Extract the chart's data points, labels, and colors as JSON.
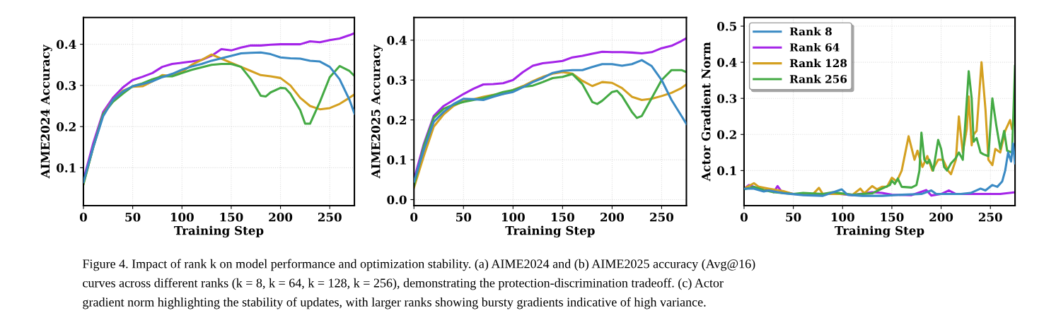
{
  "chart_data": [
    {
      "type": "line",
      "xlabel": "Training Step",
      "ylabel": "AIME2024 Accuracy",
      "xlim": [
        0,
        275
      ],
      "xticks": [
        0,
        50,
        100,
        150,
        200,
        250
      ],
      "ylim": [
        0.008,
        0.465
      ],
      "yticks": [
        0.1,
        0.2,
        0.3,
        0.4
      ],
      "grid": true,
      "legend": false,
      "annotations": [
        "Figure 4. Impact of rank k on model performance and optimization stability. (a) AIME2024 and (b) AIME2025 accuracy (Avg@16)",
        "curves across different ranks (k = 8, k = 64, k = 128, k = 256), demonstrating the protection-discrimination tradeoff. (c) Actor",
        "gradient norm highlighting the stability of updates, with larger ranks showing bursty gradients indicative of high variance."
      ],
      "series": [
        {
          "color": "#3a8ac4",
          "x": [
            0,
            10,
            20,
            30,
            40,
            50,
            60,
            70,
            80,
            90,
            100,
            110,
            120,
            130,
            140,
            150,
            160,
            170,
            180,
            190,
            200,
            210,
            220,
            230,
            240,
            250,
            260,
            270,
            275
          ],
          "values": [
            0.065,
            0.15,
            0.225,
            0.265,
            0.285,
            0.298,
            0.303,
            0.31,
            0.32,
            0.328,
            0.338,
            0.346,
            0.352,
            0.36,
            0.366,
            0.372,
            0.378,
            0.379,
            0.38,
            0.376,
            0.368,
            0.366,
            0.365,
            0.36,
            0.358,
            0.345,
            0.315,
            0.265,
            0.232
          ]
        },
        {
          "color": "#a424e8",
          "x": [
            0,
            10,
            20,
            30,
            40,
            50,
            60,
            70,
            80,
            90,
            100,
            110,
            120,
            130,
            140,
            150,
            160,
            170,
            180,
            190,
            200,
            210,
            220,
            230,
            240,
            250,
            260,
            270,
            275
          ],
          "values": [
            0.07,
            0.16,
            0.235,
            0.27,
            0.295,
            0.313,
            0.321,
            0.33,
            0.345,
            0.352,
            0.355,
            0.358,
            0.362,
            0.372,
            0.388,
            0.385,
            0.392,
            0.397,
            0.397,
            0.399,
            0.4,
            0.4,
            0.4,
            0.407,
            0.405,
            0.41,
            0.414,
            0.422,
            0.427
          ]
        },
        {
          "color": "#d4a020",
          "x": [
            0,
            10,
            20,
            30,
            40,
            50,
            60,
            70,
            80,
            90,
            100,
            110,
            120,
            130,
            140,
            150,
            160,
            170,
            180,
            190,
            200,
            210,
            220,
            230,
            240,
            250,
            260,
            270,
            275
          ],
          "values": [
            0.06,
            0.15,
            0.23,
            0.265,
            0.287,
            0.297,
            0.298,
            0.31,
            0.325,
            0.323,
            0.333,
            0.35,
            0.362,
            0.375,
            0.365,
            0.355,
            0.345,
            0.335,
            0.325,
            0.322,
            0.318,
            0.3,
            0.27,
            0.25,
            0.242,
            0.245,
            0.255,
            0.27,
            0.278
          ]
        },
        {
          "color": "#44aa44",
          "x": [
            0,
            10,
            20,
            30,
            40,
            50,
            60,
            70,
            80,
            90,
            100,
            110,
            120,
            130,
            140,
            150,
            160,
            170,
            180,
            185,
            190,
            200,
            205,
            210,
            220,
            225,
            230,
            240,
            250,
            260,
            270,
            275
          ],
          "values": [
            0.06,
            0.15,
            0.23,
            0.26,
            0.28,
            0.298,
            0.305,
            0.315,
            0.322,
            0.322,
            0.33,
            0.338,
            0.344,
            0.35,
            0.352,
            0.352,
            0.345,
            0.315,
            0.275,
            0.273,
            0.283,
            0.294,
            0.293,
            0.28,
            0.24,
            0.207,
            0.207,
            0.26,
            0.32,
            0.347,
            0.335,
            0.323
          ]
        }
      ]
    },
    {
      "type": "line",
      "xlabel": "Training Step",
      "ylabel": "AIME2025 Accuracy",
      "xlim": [
        0,
        275
      ],
      "xticks": [
        0,
        50,
        100,
        150,
        200,
        250
      ],
      "ylim": [
        -0.015,
        0.457
      ],
      "yticks": [
        {
          "value": 0,
          "label": "0.0"
        },
        0.1,
        0.2,
        0.3,
        0.4
      ],
      "grid": true,
      "legend": false,
      "series": [
        {
          "color": "#3a8ac4",
          "x": [
            0,
            10,
            20,
            30,
            40,
            50,
            60,
            70,
            80,
            90,
            100,
            110,
            120,
            130,
            140,
            150,
            160,
            170,
            180,
            190,
            200,
            210,
            220,
            230,
            240,
            250,
            260,
            270,
            275
          ],
          "values": [
            0.045,
            0.125,
            0.195,
            0.22,
            0.24,
            0.253,
            0.252,
            0.25,
            0.258,
            0.265,
            0.27,
            0.282,
            0.295,
            0.305,
            0.318,
            0.323,
            0.325,
            0.325,
            0.333,
            0.34,
            0.34,
            0.336,
            0.34,
            0.35,
            0.335,
            0.3,
            0.25,
            0.21,
            0.19
          ]
        },
        {
          "color": "#a424e8",
          "x": [
            0,
            10,
            20,
            30,
            40,
            50,
            60,
            70,
            80,
            90,
            100,
            110,
            120,
            130,
            140,
            150,
            160,
            170,
            180,
            190,
            200,
            210,
            220,
            230,
            240,
            250,
            260,
            270,
            275
          ],
          "values": [
            0.05,
            0.14,
            0.21,
            0.235,
            0.25,
            0.265,
            0.278,
            0.289,
            0.29,
            0.292,
            0.3,
            0.32,
            0.336,
            0.342,
            0.345,
            0.348,
            0.357,
            0.361,
            0.366,
            0.371,
            0.37,
            0.37,
            0.369,
            0.367,
            0.37,
            0.38,
            0.386,
            0.398,
            0.405
          ]
        },
        {
          "color": "#d4a020",
          "x": [
            0,
            10,
            20,
            30,
            40,
            50,
            60,
            70,
            80,
            90,
            100,
            110,
            120,
            130,
            140,
            150,
            160,
            170,
            180,
            190,
            200,
            210,
            220,
            230,
            240,
            250,
            260,
            270,
            275
          ],
          "values": [
            0.03,
            0.11,
            0.183,
            0.214,
            0.235,
            0.247,
            0.252,
            0.258,
            0.263,
            0.265,
            0.275,
            0.285,
            0.297,
            0.308,
            0.316,
            0.32,
            0.316,
            0.298,
            0.285,
            0.295,
            0.293,
            0.28,
            0.258,
            0.25,
            0.253,
            0.26,
            0.268,
            0.28,
            0.289
          ]
        },
        {
          "color": "#44aa44",
          "x": [
            0,
            10,
            20,
            30,
            40,
            50,
            60,
            70,
            80,
            90,
            100,
            110,
            120,
            130,
            140,
            150,
            160,
            170,
            180,
            185,
            190,
            200,
            205,
            210,
            220,
            225,
            230,
            240,
            250,
            260,
            270,
            275
          ],
          "values": [
            0.035,
            0.135,
            0.205,
            0.228,
            0.238,
            0.245,
            0.25,
            0.255,
            0.262,
            0.27,
            0.275,
            0.283,
            0.286,
            0.295,
            0.305,
            0.308,
            0.315,
            0.29,
            0.245,
            0.24,
            0.248,
            0.27,
            0.273,
            0.26,
            0.22,
            0.205,
            0.21,
            0.255,
            0.3,
            0.325,
            0.325,
            0.32
          ]
        }
      ]
    },
    {
      "type": "line",
      "xlabel": "Training Step",
      "ylabel": "Actor Gradient Norm",
      "xlim": [
        0,
        275
      ],
      "xticks": [
        0,
        50,
        100,
        150,
        200,
        250
      ],
      "ylim": [
        0.003,
        0.524
      ],
      "yticks": [
        0.1,
        0.2,
        0.3,
        0.4,
        0.5
      ],
      "grid": true,
      "legend": "top left",
      "series": [
        {
          "name": "Rank 8",
          "color": "#3a8ac4",
          "x": [
            0,
            10,
            20,
            25,
            40,
            60,
            80,
            99,
            105,
            120,
            140,
            160,
            180,
            190,
            195,
            220,
            230,
            240,
            245,
            252,
            257,
            262,
            265,
            268,
            271,
            273,
            275
          ],
          "values": [
            0.05,
            0.05,
            0.042,
            0.045,
            0.037,
            0.032,
            0.03,
            0.048,
            0.033,
            0.03,
            0.03,
            0.033,
            0.035,
            0.045,
            0.035,
            0.035,
            0.038,
            0.05,
            0.045,
            0.06,
            0.055,
            0.07,
            0.1,
            0.15,
            0.125,
            0.175,
            0.12
          ]
        },
        {
          "name": "Rank 64",
          "color": "#a424e8",
          "x": [
            0,
            5,
            10,
            20,
            25,
            30,
            34,
            38,
            50,
            70,
            90,
            110,
            130,
            140,
            150,
            170,
            185,
            190,
            200,
            208,
            215,
            240,
            260,
            275
          ],
          "values": [
            0.05,
            0.06,
            0.055,
            0.045,
            0.048,
            0.04,
            0.057,
            0.042,
            0.035,
            0.033,
            0.037,
            0.032,
            0.04,
            0.038,
            0.033,
            0.032,
            0.046,
            0.031,
            0.035,
            0.045,
            0.035,
            0.035,
            0.035,
            0.04
          ]
        },
        {
          "name": "Rank 128",
          "color": "#d4a020",
          "x": [
            0,
            10,
            15,
            25,
            40,
            50,
            70,
            76,
            80,
            100,
            110,
            118,
            122,
            130,
            135,
            140,
            145,
            150,
            155,
            160,
            167,
            173,
            176,
            181,
            186,
            191,
            197,
            202,
            207,
            210,
            215,
            218,
            222,
            226,
            228,
            231,
            233,
            236,
            241,
            245,
            248,
            252,
            255,
            260,
            265,
            270,
            272,
            275
          ],
          "values": [
            0.05,
            0.065,
            0.055,
            0.05,
            0.043,
            0.035,
            0.035,
            0.052,
            0.035,
            0.035,
            0.033,
            0.05,
            0.037,
            0.057,
            0.048,
            0.055,
            0.055,
            0.08,
            0.07,
            0.1,
            0.195,
            0.13,
            0.155,
            0.11,
            0.14,
            0.1,
            0.13,
            0.13,
            0.1,
            0.09,
            0.13,
            0.25,
            0.15,
            0.215,
            0.305,
            0.17,
            0.2,
            0.21,
            0.4,
            0.27,
            0.13,
            0.115,
            0.16,
            0.15,
            0.21,
            0.24,
            0.215,
            0.25
          ]
        },
        {
          "name": "Rank 256",
          "color": "#44aa44",
          "x": [
            0,
            10,
            20,
            30,
            50,
            60,
            80,
            90,
            110,
            130,
            140,
            148,
            150,
            153,
            156,
            160,
            170,
            175,
            178,
            180,
            183,
            186,
            188,
            192,
            197,
            200,
            203,
            206,
            210,
            215,
            218,
            222,
            225,
            228,
            231,
            233,
            236,
            240,
            243,
            248,
            252,
            256,
            260,
            264,
            267,
            272,
            275
          ],
          "values": [
            0.048,
            0.055,
            0.046,
            0.04,
            0.035,
            0.038,
            0.035,
            0.04,
            0.033,
            0.037,
            0.05,
            0.06,
            0.072,
            0.063,
            0.078,
            0.055,
            0.053,
            0.06,
            0.1,
            0.205,
            0.13,
            0.12,
            0.13,
            0.1,
            0.185,
            0.16,
            0.11,
            0.1,
            0.12,
            0.135,
            0.15,
            0.13,
            0.25,
            0.375,
            0.3,
            0.18,
            0.19,
            0.15,
            0.145,
            0.14,
            0.3,
            0.225,
            0.16,
            0.21,
            0.155,
            0.15,
            0.39
          ]
        }
      ]
    }
  ]
}
